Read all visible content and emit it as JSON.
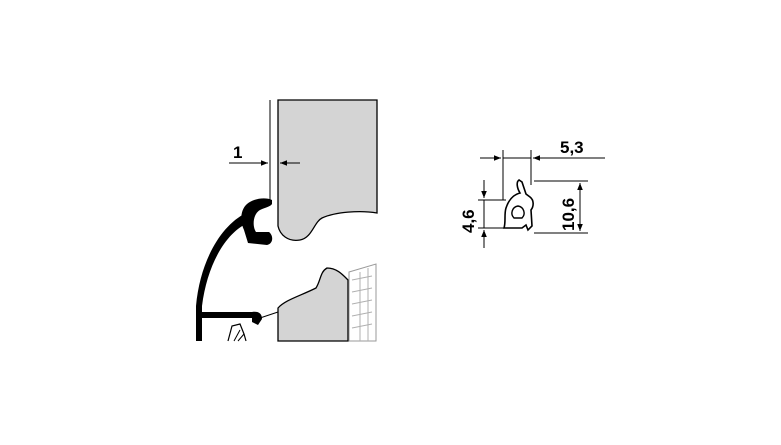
{
  "dimensions": {
    "gap": "1",
    "profile_width": "5,3",
    "lip_height": "4,6",
    "profile_height": "10,6"
  },
  "colors": {
    "panel_fill": "#d4d4d4",
    "stroke": "#000000",
    "background": "#ffffff"
  }
}
